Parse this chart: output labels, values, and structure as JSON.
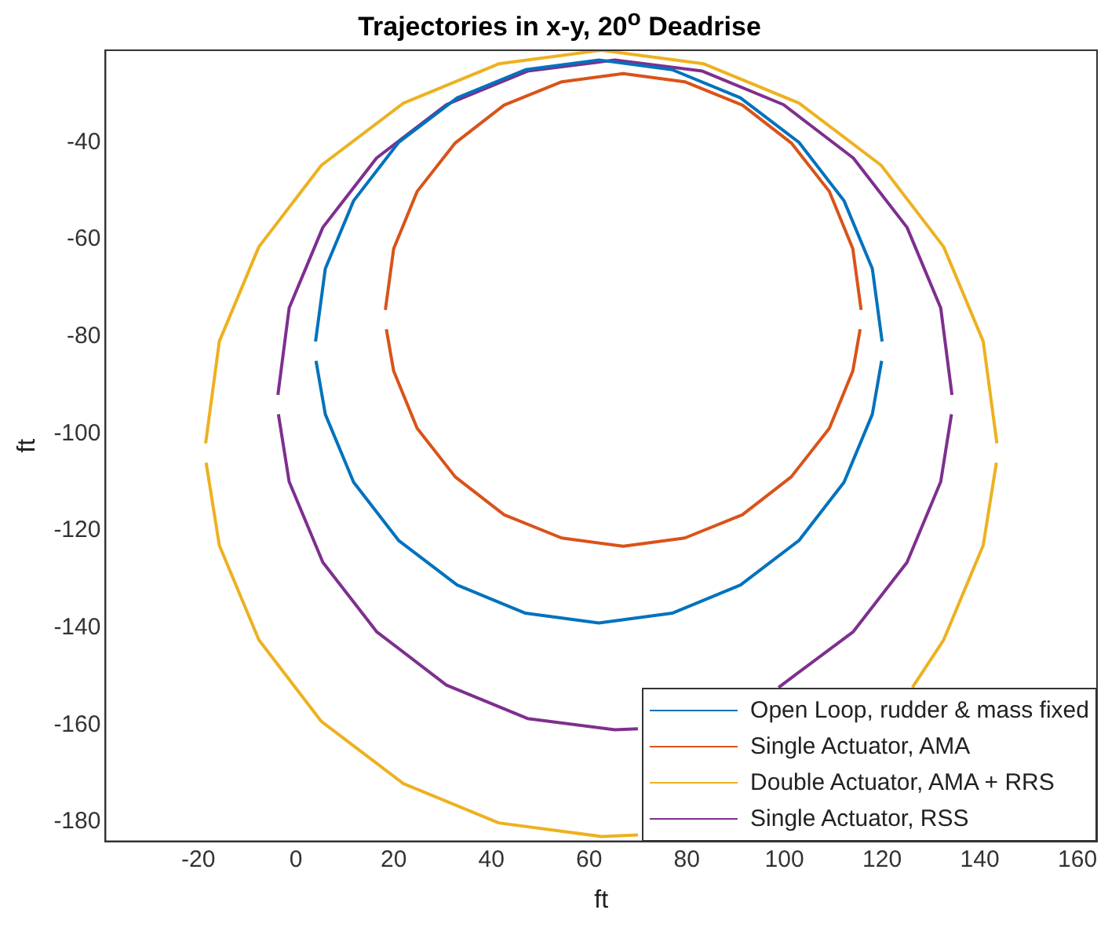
{
  "chart_data": {
    "type": "line",
    "title": "Trajectories in x-y, 20$^{o}$ Deadrise",
    "xlabel": "ft",
    "ylabel": "ft",
    "xlim": [
      -39,
      164
    ],
    "xticks": [
      -20,
      0,
      20,
      40,
      60,
      80,
      100,
      120,
      140,
      160
    ],
    "ylim": [
      -184,
      -21
    ],
    "yticks": [
      -180,
      -160,
      -140,
      -120,
      -100,
      -80,
      -60,
      -40
    ],
    "grid": false,
    "legend": "bottom right",
    "marker": "none",
    "line_style": "solid",
    "series": [
      {
        "name": "Open Loop, rudder & mass fixed",
        "color": "#0072bd",
        "x": [
          4,
          6,
          11.8,
          21,
          33,
          47,
          62,
          77,
          91,
          103,
          112.2,
          118,
          120
        ],
        "values": [
          -81,
          -66,
          -52,
          -40,
          -30.8,
          -25,
          -23,
          -25,
          -30.8,
          -40,
          -52,
          -66,
          -81
        ]
      },
      {
        "color": "#0072bd",
        "x": [
          4.1,
          6,
          11.8,
          21,
          33,
          47,
          62,
          77,
          91,
          103,
          112.2,
          118,
          119.9
        ],
        "values": [
          -85,
          -96,
          -110,
          -122,
          -131.2,
          -137,
          -139,
          -137,
          -131.2,
          -122,
          -110,
          -96,
          -85
        ]
      },
      {
        "name": "Single Actuator, AMA",
        "color": "#d95319",
        "x": [
          18.3,
          20,
          24.8,
          32.6,
          42.6,
          54.4,
          67,
          79.6,
          91.4,
          101.4,
          109.2,
          114,
          115.7
        ],
        "values": [
          -74.5,
          -61.9,
          -50.1,
          -40.1,
          -32.3,
          -27.5,
          -25.8,
          -27.5,
          -32.3,
          -40.1,
          -50.1,
          -61.9,
          -74.5
        ]
      },
      {
        "color": "#d95319",
        "x": [
          18.5,
          20,
          24.8,
          32.6,
          42.6,
          54.4,
          67,
          79.6,
          91.4,
          101.4,
          109.2,
          114,
          115.5
        ],
        "values": [
          -78.5,
          -87.1,
          -98.9,
          -108.9,
          -116.7,
          -121.5,
          -123.2,
          -121.5,
          -116.7,
          -108.9,
          -98.9,
          -87.1,
          -78.5
        ]
      },
      {
        "name": "Double Actuator, AMA + RRS",
        "color": "#edb120",
        "x": [
          -18.5,
          -15.7,
          -7.6,
          5.2,
          22,
          41.5,
          62.5,
          83.5,
          103,
          119.8,
          132.6,
          140.7,
          143.5
        ],
        "values": [
          -102,
          -81,
          -61.5,
          -44.7,
          -31.9,
          -23.8,
          -21,
          -23.8,
          -31.9,
          -44.7,
          -61.5,
          -81,
          -102
        ]
      },
      {
        "color": "#edb120",
        "x": [
          -18.4,
          -15.7,
          -7.6,
          5.2,
          22,
          41.5,
          62.5,
          70,
          100,
          126.2,
          132.6,
          140.7,
          143.4
        ],
        "values": [
          -106,
          -123,
          -142.5,
          -159.3,
          -172.1,
          -180.2,
          -183,
          -182.7,
          null,
          -152.3,
          -142.5,
          -123,
          -106
        ]
      },
      {
        "name": "Single Actuator, RSS",
        "color": "#7e2f8e",
        "x": [
          -3.7,
          -1.4,
          5.5,
          16.5,
          30.8,
          47.4,
          65.3,
          83.2,
          99.8,
          114.1,
          125.1,
          132,
          134.3
        ],
        "values": [
          -92,
          -74.1,
          -57.5,
          -43.2,
          -32.2,
          -25.3,
          -23,
          -25.3,
          -32.2,
          -43.2,
          -57.5,
          -74.1,
          -92
        ]
      },
      {
        "color": "#7e2f8e",
        "x": [
          -3.6,
          -1.4,
          5.5,
          16.5,
          30.8,
          47.4,
          65.3,
          70,
          85,
          98.8,
          114.1,
          125.1,
          132,
          134.2
        ],
        "values": [
          -96,
          -109.9,
          -126.5,
          -140.8,
          -151.8,
          -158.7,
          -161,
          -160.8,
          null,
          -152.3,
          -140.8,
          -126.5,
          -109.9,
          -96
        ]
      }
    ]
  }
}
